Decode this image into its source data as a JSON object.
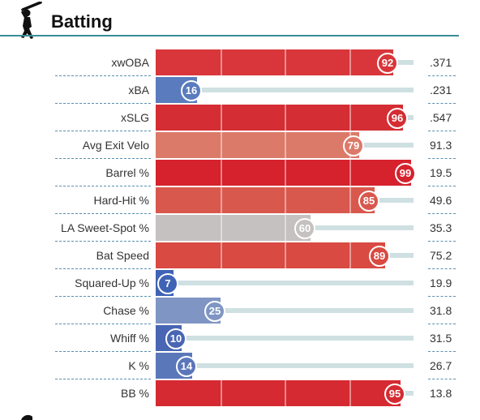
{
  "section": {
    "title": "Batting",
    "icon": "batter-icon"
  },
  "rows": [
    {
      "label": "xwOBA",
      "percentile": 92,
      "value": ".371",
      "color": "#d8363a"
    },
    {
      "label": "xBA",
      "percentile": 16,
      "value": ".231",
      "color": "#5a7bbd"
    },
    {
      "label": "xSLG",
      "percentile": 96,
      "value": ".547",
      "color": "#d42d33"
    },
    {
      "label": "Avg Exit Velo",
      "percentile": 79,
      "value": "91.3",
      "color": "#dc7a6a"
    },
    {
      "label": "Barrel %",
      "percentile": 99,
      "value": "19.5",
      "color": "#d5222d"
    },
    {
      "label": "Hard-Hit %",
      "percentile": 85,
      "value": "49.6",
      "color": "#d9584e"
    },
    {
      "label": "LA Sweet-Spot %",
      "percentile": 60,
      "value": "35.3",
      "color": "#c4c1c0"
    },
    {
      "label": "Bat Speed",
      "percentile": 89,
      "value": "75.2",
      "color": "#d84a42"
    },
    {
      "label": "Squared-Up %",
      "percentile": 7,
      "value": "19.9",
      "color": "#3f63b5"
    },
    {
      "label": "Chase %",
      "percentile": 25,
      "value": "31.8",
      "color": "#7f95c4"
    },
    {
      "label": "Whiff %",
      "percentile": 10,
      "value": "31.5",
      "color": "#4866b3"
    },
    {
      "label": "K %",
      "percentile": 14,
      "value": "26.7",
      "color": "#5a77ba"
    },
    {
      "label": "BB %",
      "percentile": 95,
      "value": "13.8",
      "color": "#d52a31"
    }
  ]
}
